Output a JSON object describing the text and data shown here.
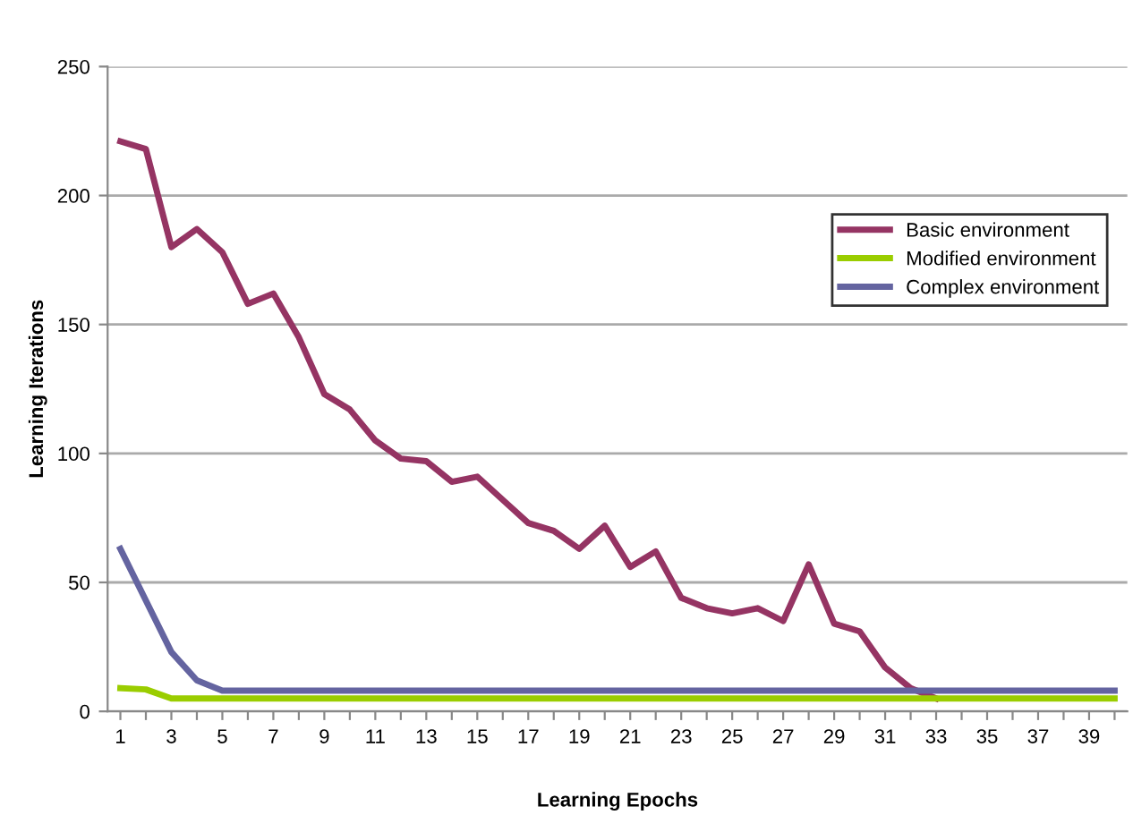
{
  "chart_data": {
    "type": "line",
    "xlabel": "Learning Epochs",
    "ylabel": "Learning Iterations",
    "categories": [
      "1",
      null,
      "3",
      null,
      "5",
      null,
      "7",
      null,
      "9",
      null,
      "11",
      null,
      "13",
      null,
      "15",
      null,
      "17",
      null,
      "19",
      null,
      "21",
      null,
      "23",
      null,
      "25",
      null,
      "27",
      null,
      "29",
      null,
      "31",
      null,
      "33",
      null,
      "35",
      null,
      "37",
      null,
      "39",
      null
    ],
    "series": [
      {
        "name": "Basic environment",
        "color": "#953463",
        "values": [
          221,
          218,
          180,
          187,
          178,
          158,
          162,
          145,
          123,
          117,
          105,
          98,
          97,
          89,
          91,
          82,
          73,
          70,
          63,
          72,
          56,
          62,
          44,
          40,
          38,
          40,
          35,
          57,
          34,
          31,
          17,
          9,
          5,
          null,
          null,
          null,
          null,
          null,
          null,
          null
        ]
      },
      {
        "name": "Modified environment",
        "color": "#9acd00",
        "values": [
          9,
          8.5,
          5,
          5,
          5,
          5,
          5,
          5,
          5,
          5,
          5,
          5,
          5,
          5,
          5,
          5,
          5,
          5,
          5,
          5,
          5,
          5,
          5,
          5,
          5,
          5,
          5,
          5,
          5,
          5,
          5,
          5,
          5,
          5,
          5,
          5,
          5,
          5,
          5,
          5
        ]
      },
      {
        "name": "Complex environment",
        "color": "#6464a0",
        "values": [
          63,
          43,
          23,
          12,
          8,
          8,
          8,
          8,
          8,
          8,
          8,
          8,
          8,
          8,
          8,
          8,
          8,
          8,
          8,
          8,
          8,
          8,
          8,
          8,
          8,
          8,
          8,
          8,
          8,
          8,
          8,
          8,
          8,
          8,
          8,
          8,
          8,
          8,
          8,
          8
        ]
      }
    ],
    "ylim": [
      0,
      250
    ],
    "yticks": [
      0,
      50,
      100,
      150,
      200,
      250
    ],
    "grid": "y",
    "legend": "right",
    "marker": "none",
    "line_style": "solid"
  }
}
